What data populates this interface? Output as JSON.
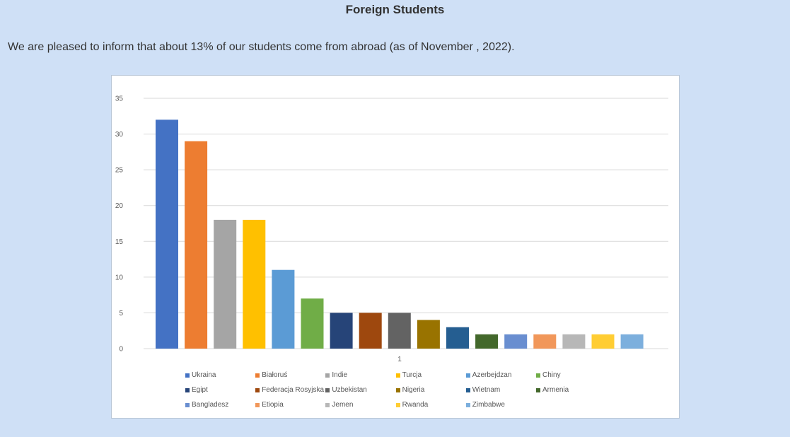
{
  "page": {
    "title": "Foreign Students",
    "intro": "We are pleased to inform that about 13% of our students come from abroad (as of November , 2022)."
  },
  "chart_data": {
    "type": "bar",
    "title": "",
    "xlabel": "",
    "ylabel": "",
    "categories": [
      "1"
    ],
    "ylim": [
      0,
      35
    ],
    "yticks": [
      0,
      5,
      10,
      15,
      20,
      25,
      30,
      35
    ],
    "grid": true,
    "legend_position": "bottom",
    "series": [
      {
        "name": "Ukraina",
        "values": [
          32
        ],
        "color": "#4472c4"
      },
      {
        "name": "Białoruś",
        "values": [
          29
        ],
        "color": "#ed7d31"
      },
      {
        "name": "Indie",
        "values": [
          18
        ],
        "color": "#a5a5a5"
      },
      {
        "name": "Turcja",
        "values": [
          18
        ],
        "color": "#ffc000"
      },
      {
        "name": "Azerbejdzan",
        "values": [
          11
        ],
        "color": "#5b9bd5"
      },
      {
        "name": "Chiny",
        "values": [
          7
        ],
        "color": "#70ad47"
      },
      {
        "name": "Egipt",
        "values": [
          5
        ],
        "color": "#264478"
      },
      {
        "name": "Federacja Rosyjska",
        "values": [
          5
        ],
        "color": "#9e480e"
      },
      {
        "name": "Uzbekistan",
        "values": [
          5
        ],
        "color": "#636363"
      },
      {
        "name": "Nigeria",
        "values": [
          4
        ],
        "color": "#997300"
      },
      {
        "name": "Wietnam",
        "values": [
          3
        ],
        "color": "#255e91"
      },
      {
        "name": "Armenia",
        "values": [
          2
        ],
        "color": "#43682b"
      },
      {
        "name": "Bangladesz",
        "values": [
          2
        ],
        "color": "#698ed0"
      },
      {
        "name": "Etiopia",
        "values": [
          2
        ],
        "color": "#f1975a"
      },
      {
        "name": "Jemen",
        "values": [
          2
        ],
        "color": "#b7b7b7"
      },
      {
        "name": "Rwanda",
        "values": [
          2
        ],
        "color": "#ffcd33"
      },
      {
        "name": "Zimbabwe",
        "values": [
          2
        ],
        "color": "#7cafdd"
      }
    ]
  }
}
